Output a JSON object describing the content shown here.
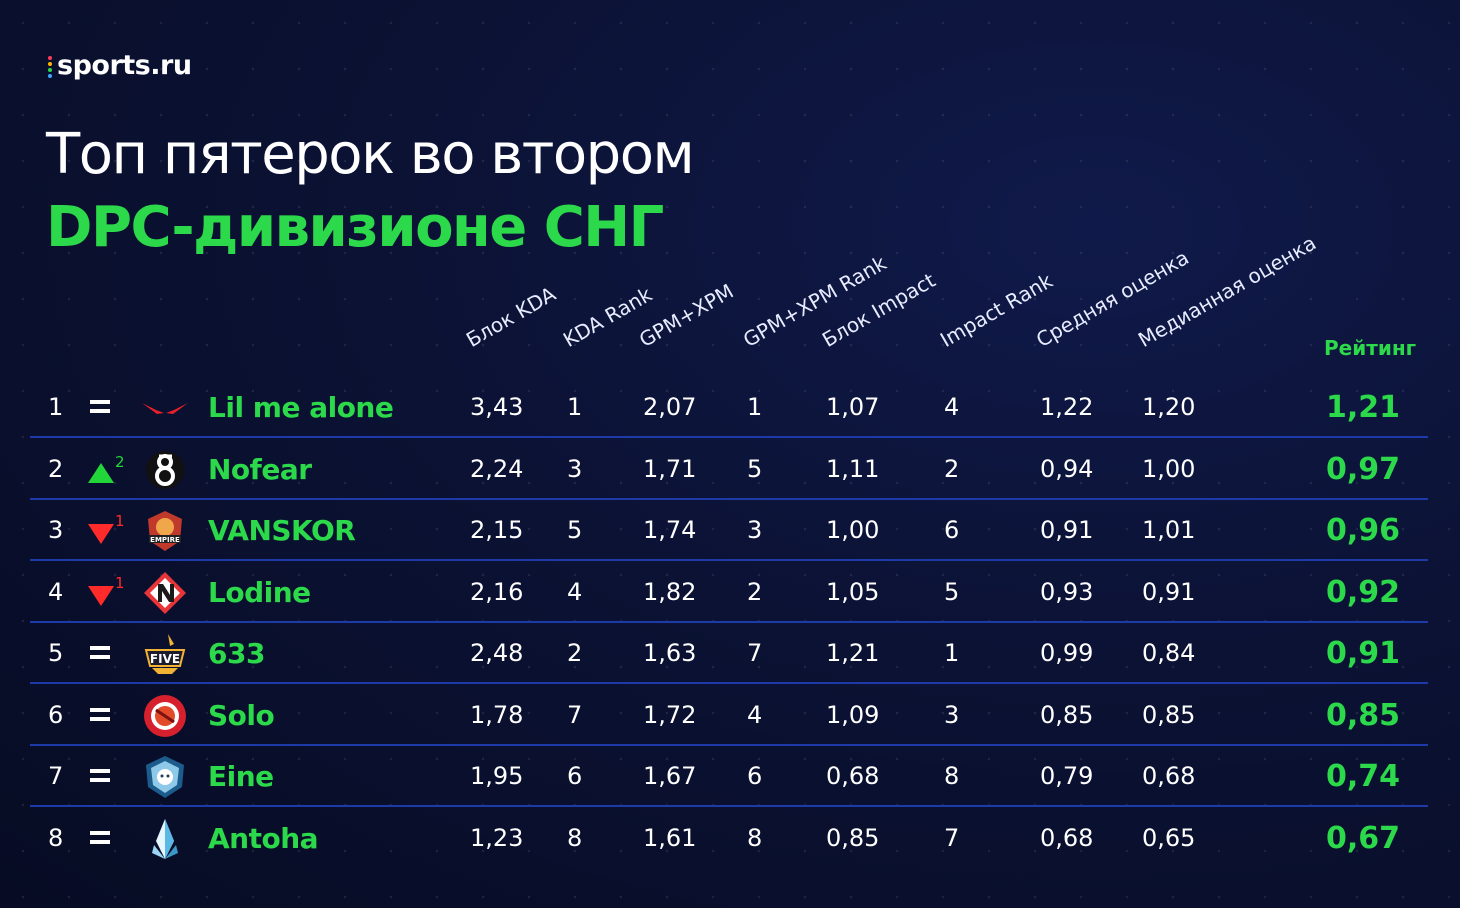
{
  "brand": {
    "logo_text": "sports.ru",
    "dot_colors": [
      "#ff3b5c",
      "#ffb400",
      "#2bd94a",
      "#3aa8ff"
    ]
  },
  "title": {
    "line1": "Топ пятерок во втором",
    "line2": "DPC-дивизионе СНГ"
  },
  "colors": {
    "accent_green": "#2bd94a",
    "up_green": "#22d63a",
    "down_red": "#ff2a2a",
    "separator": "#1e3aa8",
    "background": "#0b1234"
  },
  "chart_data": {
    "type": "table",
    "columns": [
      "Блок KDA",
      "KDA Rank",
      "GPM+XPM",
      "GPM+XPM Rank",
      "Блок Impact",
      "Impact Rank",
      "Средняя оценка",
      "Медианная оценка"
    ],
    "rating_label": "Рейтинг",
    "rows": [
      {
        "rank": "1",
        "change": "=",
        "change_value": "",
        "logo_icon": "red-wings-logo-icon",
        "team": "Lil me alone",
        "values": [
          "3,43",
          "1",
          "2,07",
          "1",
          "1,07",
          "4",
          "1,22",
          "1,20"
        ],
        "rating": "1,21"
      },
      {
        "rank": "2",
        "change": "up",
        "change_value": "2",
        "logo_icon": "nofear-eight-logo-icon",
        "team": "Nofear",
        "values": [
          "2,24",
          "3",
          "1,71",
          "5",
          "1,11",
          "2",
          "0,94",
          "1,00"
        ],
        "rating": "0,97"
      },
      {
        "rank": "3",
        "change": "down",
        "change_value": "1",
        "logo_icon": "empire-logo-icon",
        "team": "VANSKOR",
        "values": [
          "2,15",
          "5",
          "1,74",
          "3",
          "1,00",
          "6",
          "0,91",
          "1,01"
        ],
        "rating": "0,96"
      },
      {
        "rank": "4",
        "change": "down",
        "change_value": "1",
        "logo_icon": "navi-logo-icon",
        "team": "Lodine",
        "values": [
          "2,16",
          "4",
          "1,82",
          "2",
          "1,05",
          "5",
          "0,93",
          "0,91"
        ],
        "rating": "0,92"
      },
      {
        "rank": "5",
        "change": "=",
        "change_value": "",
        "logo_icon": "five-logo-icon",
        "team": "633",
        "values": [
          "2,48",
          "2",
          "1,63",
          "7",
          "1,21",
          "1",
          "0,99",
          "0,84"
        ],
        "rating": "0,91"
      },
      {
        "rank": "6",
        "change": "=",
        "change_value": "",
        "logo_icon": "red-circle-logo-icon",
        "team": "Solo",
        "values": [
          "1,78",
          "7",
          "1,72",
          "4",
          "1,09",
          "3",
          "0,85",
          "0,85"
        ],
        "rating": "0,85"
      },
      {
        "rank": "7",
        "change": "=",
        "change_value": "",
        "logo_icon": "bear-shield-logo-icon",
        "team": "Eine",
        "values": [
          "1,95",
          "6",
          "1,67",
          "6",
          "0,68",
          "8",
          "0,79",
          "0,68"
        ],
        "rating": "0,74"
      },
      {
        "rank": "8",
        "change": "=",
        "change_value": "",
        "logo_icon": "crystal-logo-icon",
        "team": "Antoha",
        "values": [
          "1,23",
          "8",
          "1,61",
          "8",
          "0,85",
          "7",
          "0,68",
          "0,65"
        ],
        "rating": "0,67"
      }
    ]
  }
}
